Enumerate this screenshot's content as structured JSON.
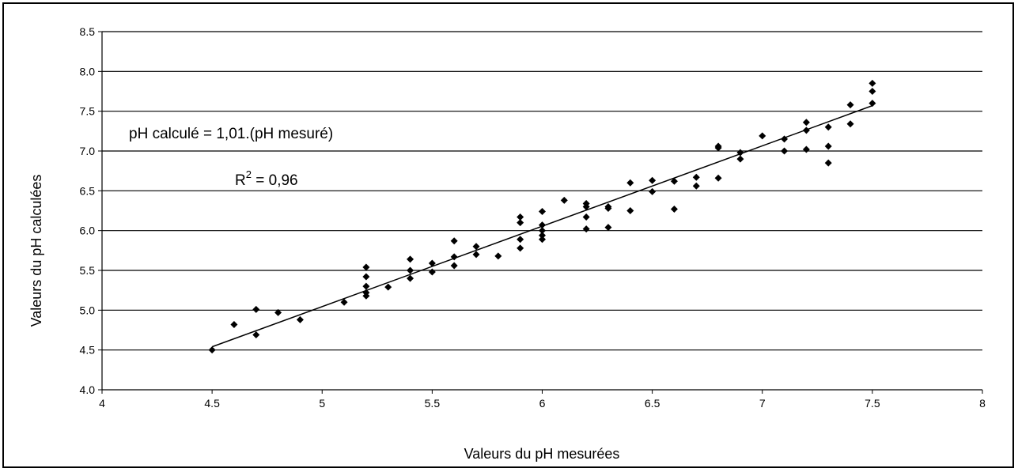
{
  "chart_data": {
    "type": "scatter",
    "xlabel": "Valeurs du pH mesurées",
    "ylabel": "Valeurs du pH calculées",
    "xlim": [
      4,
      8
    ],
    "ylim": [
      4.0,
      8.5
    ],
    "x_ticks": [
      4,
      4.5,
      5,
      5.5,
      6,
      6.5,
      7,
      7.5,
      8
    ],
    "x_tick_labels": [
      "4",
      "4.5",
      "5",
      "5.5",
      "6",
      "6.5",
      "7",
      "7.5",
      "8"
    ],
    "y_ticks": [
      4.0,
      4.5,
      5.0,
      5.5,
      6.0,
      6.5,
      7.0,
      7.5,
      8.0,
      8.5
    ],
    "y_tick_labels": [
      "4.0",
      "4.5",
      "5.0",
      "5.5",
      "6.0",
      "6.5",
      "7.0",
      "7.5",
      "8.0",
      "8.5"
    ],
    "grid": "horizontal",
    "marker": "diamond",
    "color": "#000000",
    "points": [
      [
        4.5,
        4.5
      ],
      [
        4.6,
        4.82
      ],
      [
        4.7,
        5.01
      ],
      [
        4.7,
        4.69
      ],
      [
        4.8,
        4.97
      ],
      [
        4.9,
        4.88
      ],
      [
        5.1,
        5.1
      ],
      [
        5.2,
        5.54
      ],
      [
        5.2,
        5.42
      ],
      [
        5.2,
        5.3
      ],
      [
        5.2,
        5.22
      ],
      [
        5.2,
        5.18
      ],
      [
        5.3,
        5.29
      ],
      [
        5.4,
        5.64
      ],
      [
        5.4,
        5.5
      ],
      [
        5.4,
        5.4
      ],
      [
        5.5,
        5.59
      ],
      [
        5.5,
        5.48
      ],
      [
        5.6,
        5.87
      ],
      [
        5.6,
        5.67
      ],
      [
        5.6,
        5.56
      ],
      [
        5.7,
        5.8
      ],
      [
        5.7,
        5.7
      ],
      [
        5.8,
        5.68
      ],
      [
        5.9,
        6.17
      ],
      [
        5.9,
        6.1
      ],
      [
        5.9,
        5.89
      ],
      [
        5.9,
        5.78
      ],
      [
        6.0,
        6.24
      ],
      [
        6.0,
        6.07
      ],
      [
        6.0,
        6.0
      ],
      [
        6.0,
        5.94
      ],
      [
        6.0,
        5.89
      ],
      [
        6.1,
        6.38
      ],
      [
        6.2,
        6.34
      ],
      [
        6.2,
        6.3
      ],
      [
        6.2,
        6.17
      ],
      [
        6.2,
        6.02
      ],
      [
        6.3,
        6.3
      ],
      [
        6.3,
        6.28
      ],
      [
        6.3,
        6.04
      ],
      [
        6.4,
        6.6
      ],
      [
        6.4,
        6.25
      ],
      [
        6.5,
        6.63
      ],
      [
        6.5,
        6.49
      ],
      [
        6.6,
        6.62
      ],
      [
        6.6,
        6.27
      ],
      [
        6.7,
        6.67
      ],
      [
        6.7,
        6.56
      ],
      [
        6.8,
        7.06
      ],
      [
        6.8,
        7.04
      ],
      [
        6.8,
        6.66
      ],
      [
        6.9,
        6.98
      ],
      [
        6.9,
        6.9
      ],
      [
        7.0,
        7.19
      ],
      [
        7.1,
        7.15
      ],
      [
        7.1,
        7.0
      ],
      [
        7.2,
        7.36
      ],
      [
        7.2,
        7.26
      ],
      [
        7.2,
        7.02
      ],
      [
        7.3,
        7.3
      ],
      [
        7.3,
        7.06
      ],
      [
        7.3,
        6.85
      ],
      [
        7.4,
        7.58
      ],
      [
        7.4,
        7.34
      ],
      [
        7.5,
        7.85
      ],
      [
        7.5,
        7.75
      ],
      [
        7.5,
        7.6
      ]
    ],
    "trendline": {
      "x": [
        4.5,
        7.5
      ],
      "y": [
        4.54,
        7.57
      ]
    },
    "annotations": {
      "equation": "pH calculé = 1,01.(pH mesuré)",
      "r2_prefix": "R",
      "r2_exponent": "2",
      "r2_value": " = 0,96"
    }
  }
}
